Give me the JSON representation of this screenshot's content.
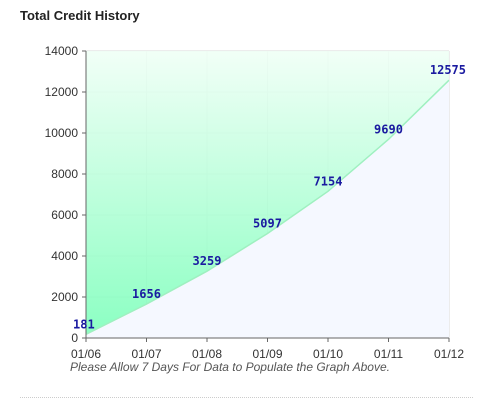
{
  "title": "Total Credit History",
  "note": "Please Allow 7 Days For Data to Populate the Graph Above.",
  "colors": {
    "fill_top": "#f0fff6",
    "fill_bottom": "#7dffbb",
    "curve": "#9ff0c0",
    "under_area": "#f5f8ff",
    "data_label": "#1a1aa0",
    "grid": "#d9d9d9",
    "axis": "#666666"
  },
  "chart_data": {
    "type": "area",
    "title": "Total Credit History",
    "x": [
      "01/06",
      "01/07",
      "01/08",
      "01/09",
      "01/10",
      "01/11",
      "01/12"
    ],
    "values": [
      181,
      1656,
      3259,
      5097,
      7154,
      9690,
      12575
    ],
    "data_labels": [
      "181",
      "1656",
      "3259",
      "5097",
      "7154",
      "9690",
      "12575"
    ],
    "y_ticks": [
      "0",
      "2000",
      "4000",
      "6000",
      "8000",
      "10000",
      "12000",
      "14000"
    ],
    "ylim": [
      0,
      14000
    ],
    "grid": true,
    "legend": "none"
  }
}
